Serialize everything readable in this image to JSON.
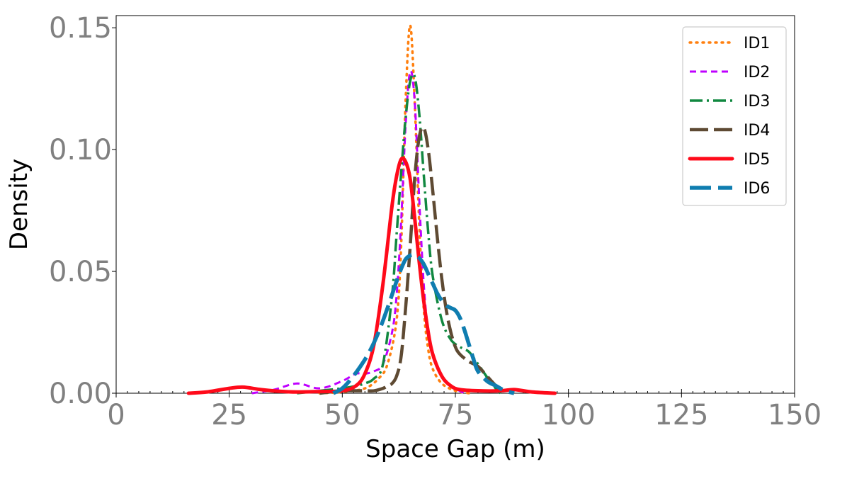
{
  "colors": {
    "ID1": "#ff7f0e",
    "ID2": "#bf00ff",
    "ID3": "#118840",
    "ID4": "#5e4a33",
    "ID5": "#ff0a1a",
    "ID6": "#0f7db0"
  },
  "chart_data": {
    "type": "line",
    "xlabel": "Space Gap (m)",
    "ylabel": "Density",
    "xlim": [
      0,
      150
    ],
    "ylim": [
      0,
      0.155
    ],
    "xticks": [
      "0",
      "25",
      "50",
      "75",
      "100",
      "125",
      "150"
    ],
    "xtick_values": [
      0,
      25,
      50,
      75,
      100,
      125,
      150
    ],
    "yticks": [
      "0.00",
      "0.05",
      "0.10",
      "0.15"
    ],
    "ytick_values": [
      0,
      0.05,
      0.1,
      0.15
    ],
    "grid": false,
    "legend_position": "top-right",
    "series": [
      {
        "name": "ID1",
        "style": "dotted",
        "x": [
          45,
          50,
          55,
          58,
          60,
          62,
          63,
          64,
          65,
          66,
          67,
          68,
          69,
          70,
          72,
          75,
          78
        ],
        "y": [
          0.0,
          0.0005,
          0.002,
          0.006,
          0.012,
          0.03,
          0.06,
          0.12,
          0.151,
          0.12,
          0.07,
          0.035,
          0.018,
          0.01,
          0.004,
          0.001,
          0.0
        ]
      },
      {
        "name": "ID2",
        "style": "dashed",
        "x": [
          30,
          35,
          40,
          45,
          50,
          53,
          55,
          57,
          59,
          61,
          62,
          63,
          64,
          65,
          66,
          67,
          68,
          69,
          70,
          72,
          74,
          77
        ],
        "y": [
          0.0,
          0.0015,
          0.004,
          0.002,
          0.005,
          0.008,
          0.008,
          0.009,
          0.012,
          0.025,
          0.04,
          0.07,
          0.11,
          0.132,
          0.12,
          0.08,
          0.045,
          0.025,
          0.015,
          0.007,
          0.003,
          0.0
        ]
      },
      {
        "name": "ID3",
        "style": "dashdot",
        "x": [
          40,
          45,
          50,
          53,
          55,
          57,
          59,
          61,
          62,
          63,
          64,
          65,
          66,
          67,
          68,
          69,
          70,
          72,
          74,
          76,
          78,
          80,
          83,
          85
        ],
        "y": [
          0.0,
          0.001,
          0.002,
          0.003,
          0.004,
          0.006,
          0.012,
          0.04,
          0.065,
          0.09,
          0.113,
          0.128,
          0.13,
          0.115,
          0.09,
          0.066,
          0.048,
          0.03,
          0.022,
          0.019,
          0.017,
          0.012,
          0.004,
          0.0
        ]
      },
      {
        "name": "ID4",
        "style": "longdash",
        "x": [
          45,
          50,
          55,
          57,
          59,
          60,
          61,
          62,
          63,
          64,
          65,
          66,
          67,
          68,
          69,
          70,
          71,
          72,
          73,
          74,
          75,
          76,
          78,
          80,
          82,
          84,
          86
        ],
        "y": [
          0.0,
          0.001,
          0.001,
          0.001,
          0.002,
          0.003,
          0.004,
          0.007,
          0.015,
          0.035,
          0.06,
          0.088,
          0.105,
          0.109,
          0.1,
          0.083,
          0.064,
          0.047,
          0.034,
          0.025,
          0.019,
          0.016,
          0.013,
          0.011,
          0.007,
          0.003,
          0.0
        ]
      },
      {
        "name": "ID5",
        "style": "solid",
        "x": [
          16,
          20,
          25,
          28,
          32,
          36,
          40,
          45,
          50,
          53,
          55,
          57,
          59,
          61,
          62,
          63,
          64,
          65,
          66,
          67,
          68,
          69,
          70,
          72,
          74,
          76,
          80,
          85,
          88,
          92,
          97
        ],
        "y": [
          0.0,
          0.0005,
          0.002,
          0.0025,
          0.0015,
          0.0008,
          0.0005,
          0.0007,
          0.001,
          0.003,
          0.008,
          0.02,
          0.045,
          0.077,
          0.089,
          0.096,
          0.095,
          0.088,
          0.072,
          0.054,
          0.038,
          0.025,
          0.016,
          0.007,
          0.003,
          0.0015,
          0.001,
          0.001,
          0.0015,
          0.0005,
          0.0
        ]
      },
      {
        "name": "ID6",
        "style": "thickdash",
        "x": [
          48,
          50,
          52,
          54,
          56,
          58,
          60,
          62,
          63,
          64,
          65,
          66,
          67,
          68,
          69,
          70,
          71,
          72,
          73,
          74,
          75,
          76,
          77,
          78,
          79,
          80,
          82,
          84,
          86,
          88
        ],
        "y": [
          0.0,
          0.002,
          0.006,
          0.011,
          0.017,
          0.025,
          0.035,
          0.046,
          0.051,
          0.055,
          0.0565,
          0.0567,
          0.0555,
          0.053,
          0.049,
          0.045,
          0.041,
          0.038,
          0.036,
          0.035,
          0.034,
          0.031,
          0.026,
          0.02,
          0.014,
          0.009,
          0.005,
          0.003,
          0.001,
          0.0
        ]
      }
    ]
  }
}
